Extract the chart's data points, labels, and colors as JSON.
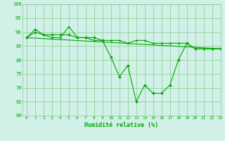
{
  "xlabel": "Humidité relative (%)",
  "background_color": "#d0f0e8",
  "grid_color": "#88cc88",
  "line_color": "#00aa00",
  "xlim": [
    -0.5,
    23
  ],
  "ylim": [
    60,
    100
  ],
  "yticks": [
    60,
    65,
    70,
    75,
    80,
    85,
    90,
    95,
    100
  ],
  "xticks": [
    0,
    1,
    2,
    3,
    4,
    5,
    6,
    7,
    8,
    9,
    10,
    11,
    12,
    13,
    14,
    15,
    16,
    17,
    18,
    19,
    20,
    21,
    22,
    23
  ],
  "line1_x": [
    0,
    1,
    2,
    3,
    4,
    5,
    6,
    7,
    8,
    9,
    10,
    11,
    12,
    13,
    14,
    15,
    16,
    17,
    18,
    19,
    20,
    21,
    22,
    23
  ],
  "line1_y": [
    88,
    91,
    89,
    89,
    89,
    89,
    88,
    88,
    88,
    87,
    81,
    74,
    78,
    65,
    71,
    68,
    68,
    71,
    80,
    86,
    84,
    84,
    84,
    84
  ],
  "line2_x": [
    0,
    1,
    2,
    3,
    4,
    5,
    6,
    7,
    8,
    9,
    10,
    11,
    12,
    13,
    14,
    15,
    16,
    17,
    18,
    19,
    20,
    21,
    22,
    23
  ],
  "line2_y": [
    88,
    90,
    89,
    88,
    88,
    92,
    88,
    88,
    87,
    87,
    87,
    87,
    86,
    87,
    87,
    86,
    86,
    86,
    86,
    86,
    84,
    84,
    84,
    84
  ],
  "line3_x": [
    0,
    23
  ],
  "line3_y": [
    88,
    84
  ]
}
